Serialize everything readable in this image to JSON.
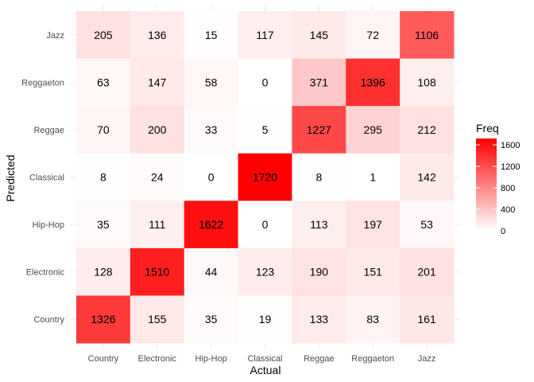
{
  "chart_data": {
    "type": "heatmap",
    "title": "",
    "xlabel": "Actual",
    "ylabel": "Predicted",
    "x_categories": [
      "Country",
      "Electronic",
      "Hip-Hop",
      "Classical",
      "Reggae",
      "Reggaeton",
      "Jazz"
    ],
    "y_categories_top_to_bottom": [
      "Jazz",
      "Reggaeton",
      "Reggae",
      "Classical",
      "Hip-Hop",
      "Electronic",
      "Country"
    ],
    "values_top_to_bottom": [
      [
        205,
        136,
        15,
        117,
        145,
        72,
        1106
      ],
      [
        63,
        147,
        58,
        0,
        371,
        1396,
        108
      ],
      [
        70,
        200,
        33,
        5,
        1227,
        295,
        212
      ],
      [
        8,
        24,
        0,
        1720,
        8,
        1,
        142
      ],
      [
        35,
        111,
        1622,
        0,
        113,
        197,
        53
      ],
      [
        128,
        1510,
        44,
        123,
        190,
        151,
        201
      ],
      [
        1326,
        155,
        35,
        19,
        133,
        83,
        161
      ]
    ],
    "legend": {
      "title": "Freq",
      "ticks": [
        0,
        400,
        800,
        1200,
        1600
      ],
      "range": [
        0,
        1720
      ],
      "low_color": "#ffffff",
      "high_color": "#ff0000",
      "placement": "right"
    },
    "grid": true
  }
}
